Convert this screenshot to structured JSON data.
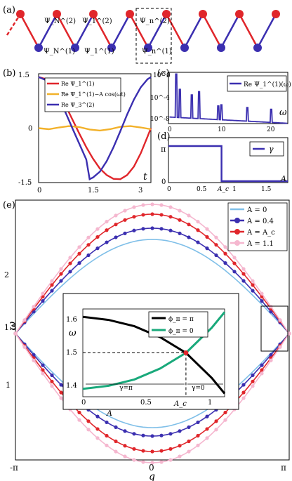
{
  "chart_data": [
    {
      "type": "diagram",
      "panel": "(a)",
      "top_labels": [
        "Ψ_N^(2)",
        "Ψ_1^(2)",
        "Ψ_n^(2)"
      ],
      "bottom_labels": [
        "Ψ_N^(1)",
        "Ψ_1^(1)",
        "Ψ_n^(1)"
      ],
      "colors": {
        "top": "#e0262b",
        "bottom": "#3b2fb0",
        "bond_red": "#e0262b",
        "bond_blue": "#3b2fb0"
      }
    },
    {
      "type": "line",
      "panel": "(b)",
      "xlabel": "t",
      "xlim": [
        0,
        3.3
      ],
      "ylim": [
        -1.6,
        1.6
      ],
      "xticks": [
        "0",
        "1.5",
        "3"
      ],
      "yticks": [
        "1.5",
        "0",
        "-1.5"
      ],
      "series": [
        {
          "name": "Re Ψ_1^(1)",
          "color": "#e0262b",
          "x": [
            0,
            0.2,
            0.4,
            0.6,
            0.8,
            1.0,
            1.2,
            1.4,
            1.6,
            1.8,
            2.0,
            2.2,
            2.4,
            2.6,
            2.8,
            3.0,
            3.2,
            3.3
          ],
          "y": [
            1.5,
            1.45,
            1.28,
            1.01,
            0.65,
            0.24,
            -0.17,
            -0.56,
            -0.9,
            -1.19,
            -1.38,
            -1.49,
            -1.5,
            -1.38,
            -1.13,
            -0.74,
            -0.25,
            0.0
          ]
        },
        {
          "name": "Re Ψ_1^(1)−A cos(ωt)",
          "color": "#f2b12a",
          "x": [
            0,
            0.3,
            0.6,
            0.9,
            1.2,
            1.5,
            1.8,
            2.1,
            2.4,
            2.7,
            3.0,
            3.3
          ],
          "y": [
            0,
            -0.03,
            0.02,
            0.06,
            0.03,
            -0.04,
            -0.07,
            -0.03,
            0.04,
            0.06,
            0.02,
            -0.03
          ]
        },
        {
          "name": "Re Ψ_3^(2)",
          "color": "#3b2fb0",
          "x": [
            0,
            0.2,
            0.4,
            0.6,
            0.8,
            1.0,
            1.2,
            1.4,
            1.5,
            1.6,
            1.8,
            2.0,
            2.2,
            2.4,
            2.6,
            2.8,
            3.0,
            3.2,
            3.3
          ],
          "y": [
            1.5,
            1.42,
            1.2,
            0.86,
            0.44,
            -0.02,
            -0.47,
            -0.92,
            -1.5,
            -1.45,
            -1.28,
            -0.97,
            -0.56,
            -0.09,
            0.4,
            0.84,
            1.2,
            1.44,
            1.5
          ]
        }
      ]
    },
    {
      "type": "line",
      "panel": "(c)",
      "xlabel": "ω",
      "xlim": [
        0,
        23
      ],
      "yscale": "log",
      "yticks": [
        "10^0",
        "10^-4",
        "10^-8"
      ],
      "xticks": [
        "0",
        "10",
        "20"
      ],
      "series": [
        {
          "name": "Re Ψ_1^(1)(ω)",
          "color": "#3b2fb0",
          "peaks": [
            1.5,
            2.2,
            4.5,
            5.9,
            9.6,
            10.2,
            15.2,
            19.8
          ],
          "peak_heights_log10": [
            0,
            -2.8,
            -3.8,
            -3.2,
            -5.8,
            -5.6,
            -6.1,
            -6.4
          ]
        }
      ]
    },
    {
      "type": "line",
      "panel": "(d)",
      "xlabel": "A",
      "xlim": [
        0,
        1.8
      ],
      "ylim": [
        0,
        3.1416
      ],
      "xticks": [
        "0",
        "0.5",
        "A_c",
        "1",
        "1.5"
      ],
      "yticks": [
        "π",
        "0"
      ],
      "series": [
        {
          "name": "γ",
          "color": "#3b2fb0",
          "x": [
            0,
            0.8,
            0.8,
            1.8
          ],
          "y": [
            3.1416,
            3.1416,
            0,
            0
          ]
        }
      ]
    },
    {
      "type": "scatter",
      "panel": "(e)",
      "xlabel": "q",
      "ylabel": "ω",
      "xlim": [
        -3.1416,
        3.1416
      ],
      "ylim": [
        0.6,
        2.45
      ],
      "xticks": [
        "-π",
        "0",
        "π"
      ],
      "yticks": [
        "1",
        "1.5",
        "2"
      ],
      "series": [
        {
          "name": "A = 0",
          "color": "#7fbfe8",
          "upper_peak": 2.17,
          "lower_min": 0.83,
          "edge": 1.5
        },
        {
          "name": "A = 0.4",
          "color": "#3b2fb0",
          "upper_peak": 2.25,
          "lower_min": 0.77,
          "edge": 1.5
        },
        {
          "name": "A = A_c",
          "color": "#e0262b",
          "upper_peak": 2.35,
          "lower_min": 0.66,
          "edge": 1.5
        },
        {
          "name": "A = 1.1",
          "color": "#f5b7cf",
          "upper_peak": 2.42,
          "lower_min": 0.58,
          "edge": 1.5
        }
      ]
    },
    {
      "type": "line",
      "panel": "(e) inset",
      "xlabel": "A",
      "ylabel": "ω",
      "xlim": [
        0,
        1.1
      ],
      "ylim": [
        1.36,
        1.64
      ],
      "xticks": [
        "0",
        "0.5",
        "A_c",
        "1"
      ],
      "yticks": [
        "1.6",
        "1.5",
        "1.4"
      ],
      "annotations": [
        "γ=π",
        "γ=0"
      ],
      "series": [
        {
          "name": "ϕ_π = π",
          "color": "#000000",
          "x": [
            0,
            0.2,
            0.4,
            0.6,
            0.8,
            1.0,
            1.1
          ],
          "y": [
            1.615,
            1.605,
            1.585,
            1.55,
            1.5,
            1.42,
            1.37
          ]
        },
        {
          "name": "ϕ_π = 0",
          "color": "#19a97b",
          "x": [
            0,
            0.2,
            0.4,
            0.6,
            0.8,
            1.0,
            1.1
          ],
          "y": [
            1.385,
            1.395,
            1.415,
            1.45,
            1.5,
            1.58,
            1.63
          ]
        }
      ]
    }
  ],
  "panel_labels": [
    "(a)",
    "(b)",
    "(c)",
    "(d)",
    "(e)"
  ]
}
